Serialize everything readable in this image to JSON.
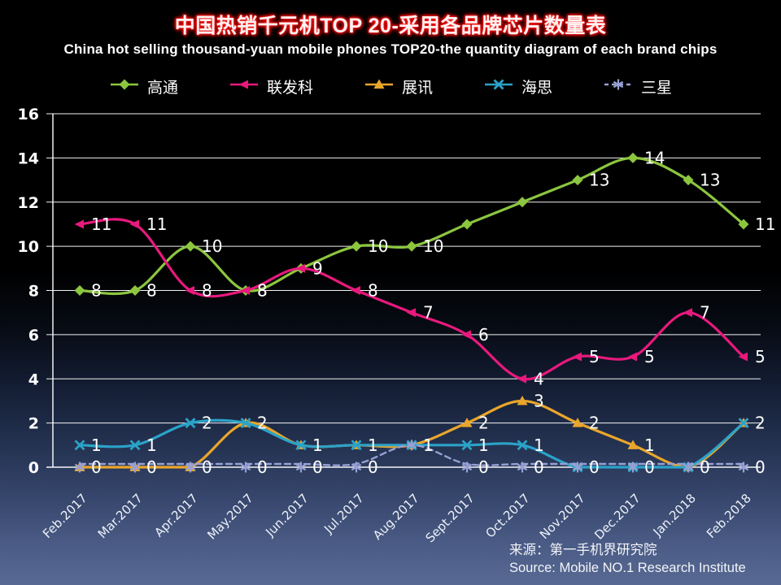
{
  "title": {
    "zh": "中国热销千元机TOP 20-采用各品牌芯片数量表",
    "en": "China hot selling thousand-yuan mobile phones TOP20-the quantity diagram of each brand chips"
  },
  "source": {
    "zh": "来源：第一手机界研究院",
    "en": "Source: Mobile NO.1 Research Institute"
  },
  "colors": {
    "title_glow_red": "#e00000",
    "gridline": "#ffffff",
    "background_bottom": "#586a93",
    "qualcomm_green": "#8cc63f",
    "mediatek_pink": "#e8197d",
    "spreadtrum_orange": "#eaa62b",
    "hisilicon_teal": "#2ba3c9",
    "samsung_lavender": "#97a0d4"
  },
  "chart_data": {
    "type": "line",
    "title": "中国热销千元机TOP 20-采用各品牌芯片数量表",
    "subtitle": "China hot selling thousand-yuan mobile phones TOP20-the quantity diagram of each brand chips",
    "xlabel": "",
    "ylabel": "",
    "ylim": [
      0,
      16
    ],
    "yticks": [
      0,
      2,
      4,
      6,
      8,
      10,
      12,
      14,
      16
    ],
    "grid": true,
    "legend_position": "top",
    "categories": [
      "Feb.2017",
      "Mar.2017",
      "Apr.2017",
      "May.2017",
      "Jun.2017",
      "Jul.2017",
      "Aug.2017",
      "Sept.2017",
      "Oct.2017",
      "Nov.2017",
      "Dec.2017",
      "Jan.2018",
      "Feb.2018"
    ],
    "series": [
      {
        "key": "qualcomm",
        "name": "高通",
        "color": "#8cc63f",
        "marker": "diamond",
        "dashed": false,
        "values": [
          8,
          8,
          10,
          8,
          9,
          10,
          10,
          11,
          12,
          13,
          14,
          13,
          11
        ],
        "labels": [
          "8",
          "8",
          "10",
          "8",
          "9",
          "10",
          "10",
          null,
          null,
          "13",
          "14",
          "13",
          "11"
        ]
      },
      {
        "key": "mediatek",
        "name": "联发科",
        "color": "#e8197d",
        "marker": "triangle-left",
        "dashed": false,
        "values": [
          11,
          11,
          8,
          8,
          9,
          8,
          7,
          6,
          4,
          5,
          5,
          7,
          5
        ],
        "labels": [
          "11",
          "11",
          "8",
          "8",
          null,
          "8",
          "7",
          "6",
          "4",
          "5",
          "5",
          "7",
          "5"
        ]
      },
      {
        "key": "spreadtrum",
        "name": "展讯",
        "color": "#eaa62b",
        "marker": "triangle-up",
        "dashed": false,
        "values": [
          0,
          0,
          0,
          2,
          1,
          1,
          1,
          2,
          3,
          2,
          1,
          0,
          2
        ],
        "labels": [
          null,
          null,
          null,
          null,
          null,
          null,
          null,
          "2",
          "3",
          "2",
          "1",
          null,
          null
        ]
      },
      {
        "key": "hisilicon",
        "name": "海思",
        "color": "#2ba3c9",
        "marker": "x",
        "dashed": false,
        "values": [
          1,
          1,
          2,
          2,
          1,
          1,
          1,
          1,
          1,
          0,
          0,
          0,
          2
        ],
        "labels": [
          "1",
          "1",
          "2",
          "2",
          "1",
          "1",
          "1",
          "1",
          "1",
          null,
          null,
          null,
          "2"
        ]
      },
      {
        "key": "samsung",
        "name": "三星",
        "color": "#97a0d4",
        "marker": "asterisk",
        "dashed": true,
        "values": [
          0,
          0,
          0,
          0,
          0,
          0,
          1,
          0,
          0,
          0,
          0,
          0,
          0
        ],
        "labels": [
          "0",
          "0",
          "0",
          "0",
          "0",
          "0",
          null,
          "0",
          "0",
          "0",
          "0",
          "0",
          "0"
        ]
      }
    ]
  }
}
